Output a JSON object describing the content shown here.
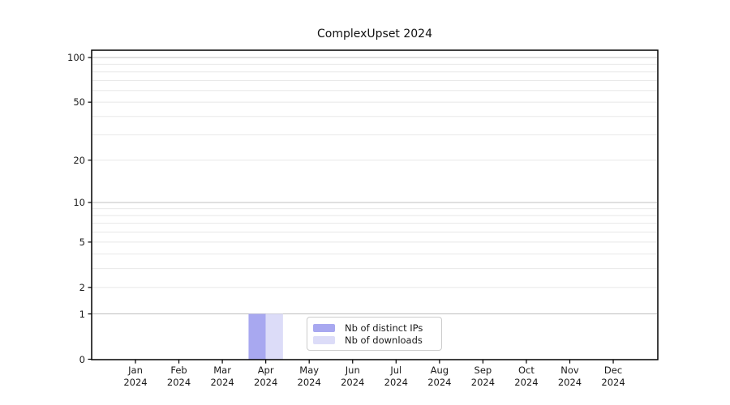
{
  "chart_data": {
    "type": "bar",
    "title": "ComplexUpset 2024",
    "x_axis": {
      "categories": [
        {
          "month": "Jan",
          "year": "2024"
        },
        {
          "month": "Feb",
          "year": "2024"
        },
        {
          "month": "Mar",
          "year": "2024"
        },
        {
          "month": "Apr",
          "year": "2024"
        },
        {
          "month": "May",
          "year": "2024"
        },
        {
          "month": "Jun",
          "year": "2024"
        },
        {
          "month": "Jul",
          "year": "2024"
        },
        {
          "month": "Aug",
          "year": "2024"
        },
        {
          "month": "Sep",
          "year": "2024"
        },
        {
          "month": "Oct",
          "year": "2024"
        },
        {
          "month": "Nov",
          "year": "2024"
        },
        {
          "month": "Dec",
          "year": "2024"
        }
      ]
    },
    "y_axis": {
      "scale": "log1p",
      "tick_values": [
        100,
        50,
        20,
        10,
        5,
        2,
        1,
        0
      ],
      "range": [
        0,
        112
      ]
    },
    "grid": {
      "major_values": [
        1,
        10,
        100
      ],
      "minor_values": [
        2,
        3,
        4,
        5,
        6,
        7,
        8,
        9,
        20,
        30,
        40,
        50,
        60,
        70,
        80,
        90
      ],
      "major_color": "#c0c0c0",
      "minor_color": "#e8e8e8"
    },
    "series": [
      {
        "name": "Nb of distinct IPs",
        "color": "#a8a8f0",
        "values": [
          0,
          0,
          0,
          1,
          0,
          0,
          0,
          0,
          0,
          0,
          0,
          0
        ]
      },
      {
        "name": "Nb of downloads",
        "color": "#dcdcf8",
        "values": [
          0,
          0,
          0,
          1,
          0,
          0,
          0,
          0,
          0,
          0,
          0,
          0
        ]
      }
    ],
    "legend_position": "inside-bottom-center"
  },
  "colors": {
    "axis": "#000000",
    "text": "#1a1a1a",
    "background": "#ffffff"
  }
}
